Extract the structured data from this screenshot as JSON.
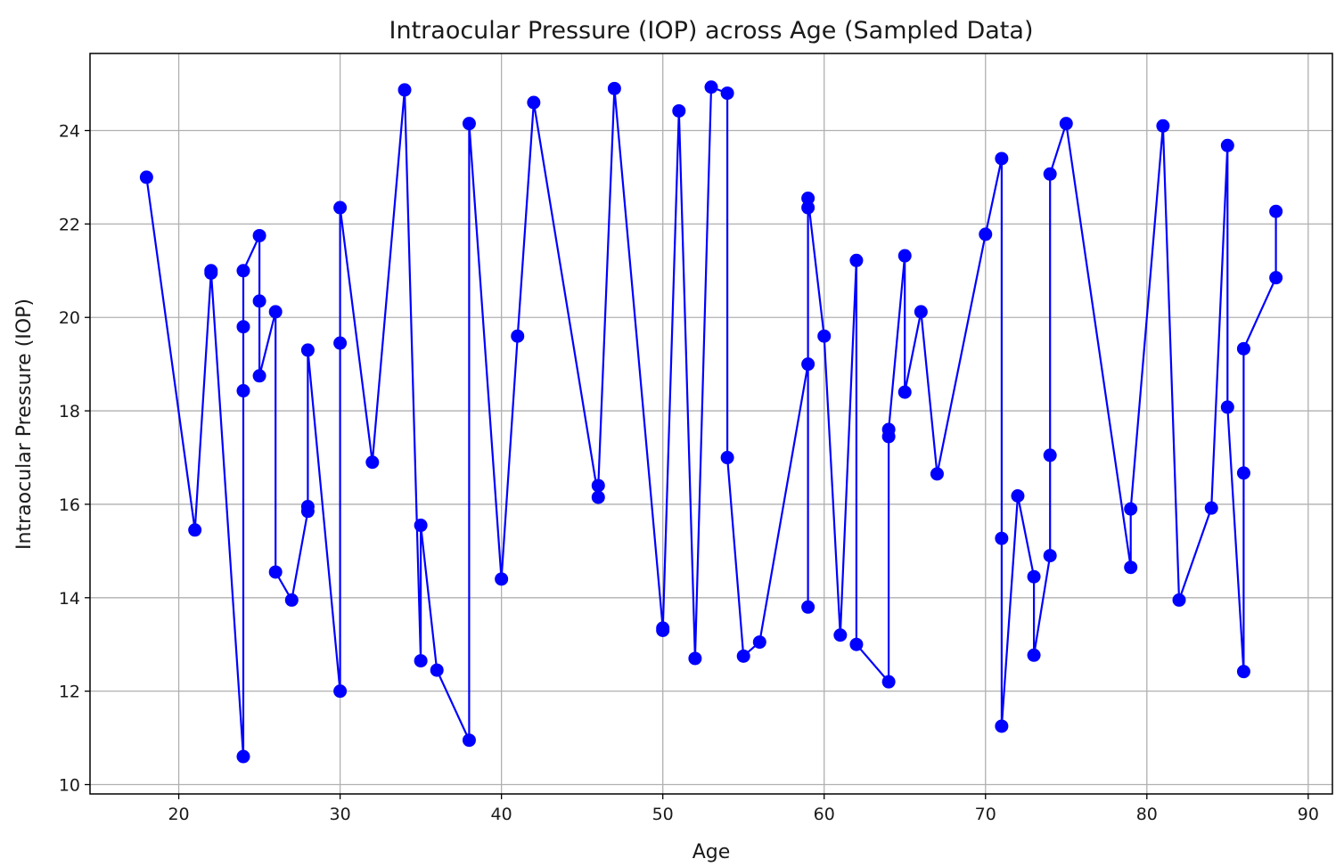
{
  "chart_data": {
    "type": "line",
    "title": "Intraocular Pressure (IOP) across Age (Sampled Data)",
    "xlabel": "Age",
    "ylabel": "Intraocular Pressure (IOP)",
    "xlim": [
      14.5,
      91.5
    ],
    "ylim": [
      9.8,
      25.65
    ],
    "xticks": [
      20,
      30,
      40,
      50,
      60,
      70,
      80,
      90
    ],
    "yticks": [
      10,
      12,
      14,
      16,
      18,
      20,
      22,
      24
    ],
    "grid": true,
    "line_color": "#0000ff",
    "marker": "circle",
    "series": [
      {
        "x": [
          18,
          21,
          22,
          22,
          24,
          24,
          24,
          24,
          25,
          25,
          25,
          26,
          26,
          27,
          28,
          28,
          28,
          30,
          30,
          30,
          32,
          34,
          35,
          35,
          36,
          38,
          38,
          40,
          41,
          42,
          46,
          46,
          47,
          50,
          50,
          51,
          52,
          53,
          54,
          54,
          55,
          56,
          59,
          59,
          59,
          59,
          60,
          61,
          62,
          62,
          64,
          64,
          64,
          65,
          65,
          66,
          67,
          70,
          71,
          71,
          71,
          72,
          73,
          73,
          74,
          74,
          74,
          75,
          79,
          79,
          81,
          82,
          84,
          85,
          85,
          86,
          86,
          86,
          88,
          88
        ],
        "y": [
          23.0,
          15.45,
          20.95,
          21.0,
          10.6,
          18.43,
          19.8,
          21.0,
          21.75,
          20.35,
          18.75,
          20.12,
          14.55,
          13.95,
          15.85,
          15.95,
          19.3,
          12.0,
          19.45,
          22.35,
          16.9,
          24.87,
          12.65,
          15.55,
          12.45,
          10.95,
          24.15,
          14.4,
          19.6,
          24.6,
          16.15,
          16.4,
          24.9,
          13.35,
          13.3,
          24.42,
          12.7,
          24.93,
          24.8,
          17.0,
          12.75,
          13.05,
          19.0,
          13.8,
          22.35,
          22.55,
          19.6,
          13.2,
          21.22,
          13.0,
          12.2,
          17.45,
          17.6,
          21.32,
          18.4,
          20.12,
          16.65,
          21.78,
          23.4,
          15.27,
          11.25,
          16.18,
          14.45,
          12.77,
          14.9,
          17.05,
          23.07,
          24.15,
          14.65,
          15.9,
          24.1,
          13.95,
          15.92,
          23.68,
          18.08,
          12.42,
          16.67,
          19.33,
          20.85,
          22.27
        ]
      }
    ]
  }
}
